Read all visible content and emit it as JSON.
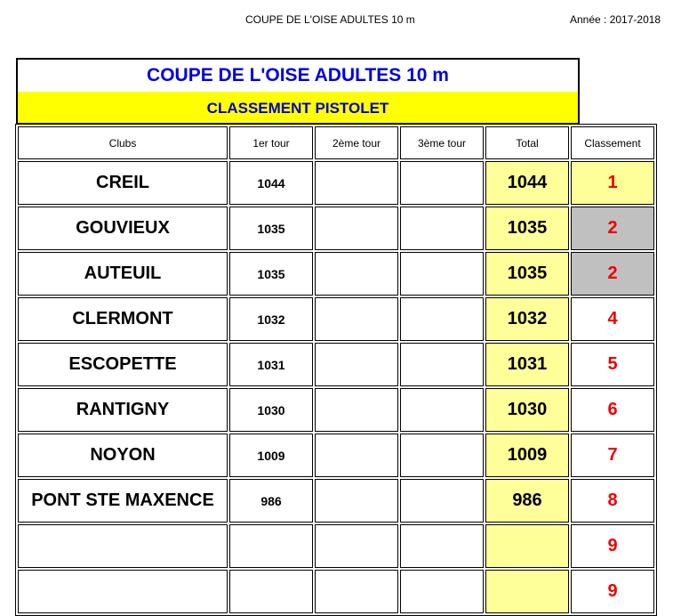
{
  "header": {
    "left": "COUPE DE L'OISE ADULTES 10 m",
    "right": "Année : 2017-2018"
  },
  "title": "COUPE DE L'OISE ADULTES 10 m",
  "subtitle": "CLASSEMENT PISTOLET",
  "columns": [
    "Clubs",
    "1er tour",
    "2ème tour",
    "3ème tour",
    "Total",
    "Classement"
  ],
  "colors": {
    "title": "#0000e0",
    "subtitle_bg": "#ffff00",
    "total_bg": "#ffff99",
    "rank": "#ee0000",
    "tie_bg": "#c0c0c0"
  },
  "rows": [
    {
      "club": "CREIL",
      "t1": "1044",
      "t2": "",
      "t3": "",
      "total": "1044",
      "rank": "1",
      "style": "first"
    },
    {
      "club": "GOUVIEUX",
      "t1": "1035",
      "t2": "",
      "t3": "",
      "total": "1035",
      "rank": "2",
      "style": "tie"
    },
    {
      "club": "AUTEUIL",
      "t1": "1035",
      "t2": "",
      "t3": "",
      "total": "1035",
      "rank": "2",
      "style": "tie"
    },
    {
      "club": "CLERMONT",
      "t1": "1032",
      "t2": "",
      "t3": "",
      "total": "1032",
      "rank": "4",
      "style": ""
    },
    {
      "club": "ESCOPETTE",
      "t1": "1031",
      "t2": "",
      "t3": "",
      "total": "1031",
      "rank": "5",
      "style": ""
    },
    {
      "club": "RANTIGNY",
      "t1": "1030",
      "t2": "",
      "t3": "",
      "total": "1030",
      "rank": "6",
      "style": ""
    },
    {
      "club": "NOYON",
      "t1": "1009",
      "t2": "",
      "t3": "",
      "total": "1009",
      "rank": "7",
      "style": ""
    },
    {
      "club": "PONT STE MAXENCE",
      "t1": "986",
      "t2": "",
      "t3": "",
      "total": "986",
      "rank": "8",
      "style": ""
    },
    {
      "club": "",
      "t1": "",
      "t2": "",
      "t3": "",
      "total": "",
      "rank": "9",
      "style": ""
    },
    {
      "club": "",
      "t1": "",
      "t2": "",
      "t3": "",
      "total": "",
      "rank": "9",
      "style": ""
    }
  ]
}
